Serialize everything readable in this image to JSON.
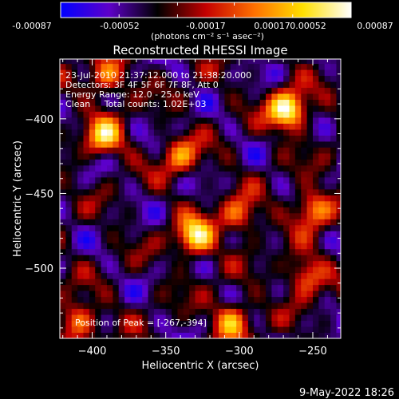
{
  "colorbar": {
    "ticks": [
      "-0.00087",
      "-0.00052",
      "-0.00017",
      "0.00017",
      "0.00052",
      "0.00087"
    ],
    "label": "(photons cm⁻² s⁻¹ asec⁻²)",
    "range": [
      -0.00087,
      0.00087
    ],
    "colors": [
      "#0000ff",
      "#5e00c9",
      "#000000",
      "#c40000",
      "#ff7000",
      "#ffe000",
      "#ffffff"
    ]
  },
  "chart_data": {
    "type": "heatmap",
    "title": "Reconstructed RHESSI Image",
    "xlabel": "Heliocentric X (arcsec)",
    "ylabel": "Heliocentric Y (arcsec)",
    "xlim": [
      -422,
      -231
    ],
    "ylim": [
      -547,
      -360
    ],
    "xticks": [
      -400,
      -350,
      -300,
      -250
    ],
    "yticks": [
      -400,
      -450,
      -500
    ],
    "xtick_labels": [
      "−400",
      "−350",
      "−300",
      "−250"
    ],
    "ytick_labels": [
      "−400",
      "−450",
      "−500"
    ],
    "peak": [
      -267,
      -394
    ],
    "sources": [
      {
        "x": -267,
        "y": -394,
        "value": 0.00087
      },
      {
        "x": -330,
        "y": -479,
        "value": 0.0007
      },
      {
        "x": -392,
        "y": -412,
        "value": 0.00052
      },
      {
        "x": -250,
        "y": -460,
        "value": 0.00045
      },
      {
        "x": -410,
        "y": -535,
        "value": 0.0004
      },
      {
        "x": -305,
        "y": -535,
        "value": 0.00045
      },
      {
        "x": -390,
        "y": -372,
        "value": 0.00035
      },
      {
        "x": -255,
        "y": -505,
        "value": 0.00035
      },
      {
        "x": -340,
        "y": -425,
        "value": 0.0003
      },
      {
        "x": -300,
        "y": -465,
        "value": 0.0003
      }
    ],
    "annotations": [
      "23-Jul-2010 21:37:12.000 to 21:38:20.000",
      "Detectors: 3F 4F 5F 6F 7F 8F, Att 0",
      "Energy Range: 12.0 - 25.0 keV",
      "Clean     Total counts: 1.02E+03"
    ],
    "peak_label": "Position of Peak = [-267,-394]"
  },
  "footer": {
    "timestamp": "9-May-2022 18:26"
  }
}
